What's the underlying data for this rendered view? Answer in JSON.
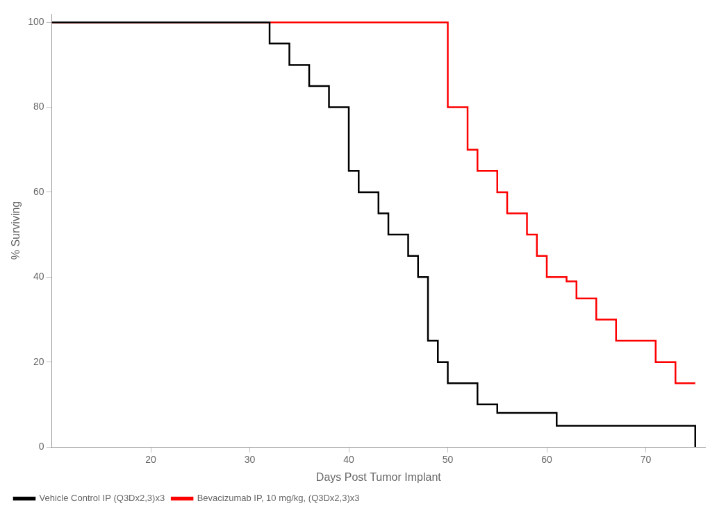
{
  "chart_data": {
    "type": "step",
    "xlabel": "Days Post Tumor Implant",
    "ylabel": "% Surviving",
    "xlim": [
      10,
      76
    ],
    "ylim": [
      0,
      102
    ],
    "xticks": [
      20,
      30,
      40,
      50,
      60,
      70
    ],
    "yticks": [
      0,
      20,
      40,
      60,
      80,
      100
    ],
    "grid": false,
    "legend": "lower left",
    "series": [
      {
        "name": "Vehicle Control IP (Q3Dx2,3)x3",
        "color": "#000000",
        "x": [
          10,
          31,
          32,
          34,
          36,
          38,
          40,
          41,
          43,
          44,
          46,
          47,
          48,
          49,
          50,
          53,
          55,
          61,
          63,
          73,
          75
        ],
        "values": [
          100,
          100,
          95,
          90,
          85,
          80,
          65,
          60,
          55,
          50,
          45,
          40,
          25,
          20,
          15,
          10,
          8,
          5,
          5,
          5,
          0
        ]
      },
      {
        "name": "Bevacizumab IP, 10 mg/kg, (Q3Dx2,3)x3",
        "color": "#ff0000",
        "x": [
          10,
          49,
          50,
          52,
          53,
          55,
          56,
          58,
          59,
          60,
          62,
          63,
          65,
          67,
          71,
          73,
          75
        ],
        "values": [
          100,
          100,
          80,
          70,
          65,
          60,
          55,
          50,
          45,
          40,
          39,
          35,
          30,
          25,
          20,
          15,
          15
        ]
      }
    ]
  }
}
